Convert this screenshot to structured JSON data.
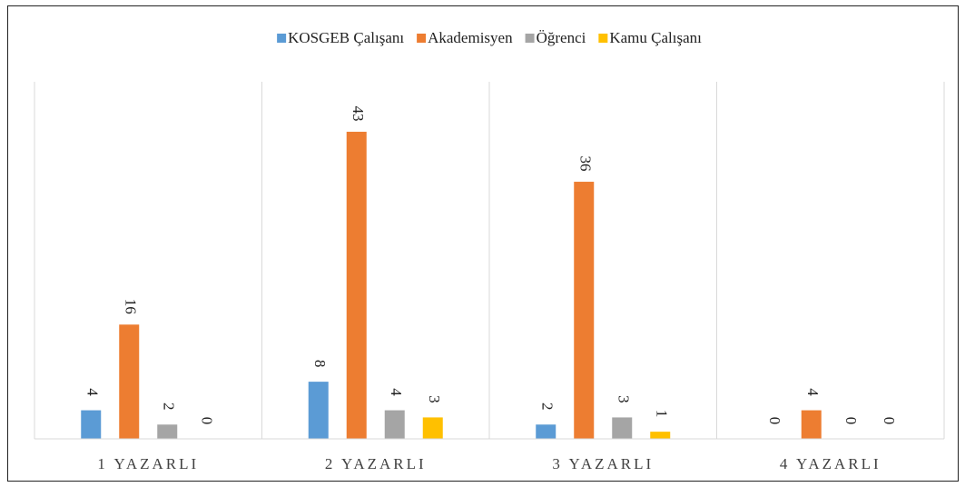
{
  "chart_data": {
    "type": "bar",
    "categories": [
      "1 YAZARLI",
      "2 YAZARLI",
      "3 YAZARLI",
      "4 YAZARLI"
    ],
    "series": [
      {
        "name": "KOSGEB Çalışanı",
        "color": "#5b9bd5",
        "values": [
          4,
          8,
          2,
          0
        ]
      },
      {
        "name": "Akademisyen",
        "color": "#ed7d31",
        "values": [
          16,
          43,
          36,
          4
        ]
      },
      {
        "name": "Öğrenci",
        "color": "#a5a5a5",
        "values": [
          2,
          4,
          3,
          0
        ]
      },
      {
        "name": "Kamu Çalışanı",
        "color": "#ffc000",
        "values": [
          0,
          3,
          1,
          0
        ]
      }
    ],
    "ylim": [
      0,
      50
    ],
    "legend": "top"
  }
}
